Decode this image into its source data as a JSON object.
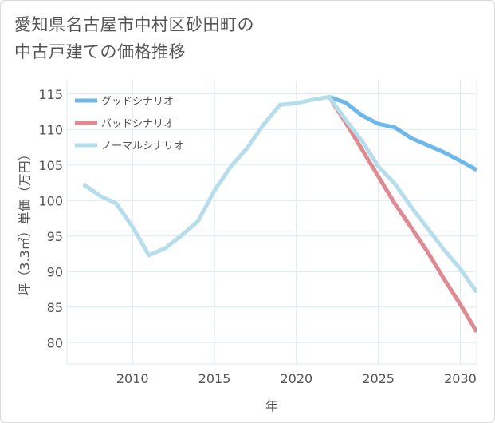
{
  "title_lines": [
    "愛知県名古屋市中村区砂田町の",
    "中古戸建ての価格推移"
  ],
  "chart_data": {
    "type": "line",
    "title": "愛知県名古屋市中村区砂田町の中古戸建ての価格推移",
    "xlabel": "年",
    "ylabel": "坪（3.3㎡）単価（万円）",
    "xlim": [
      2006,
      2031
    ],
    "ylim": [
      77,
      117
    ],
    "x_ticks": [
      2010,
      2015,
      2020,
      2025,
      2030
    ],
    "y_ticks": [
      80,
      85,
      90,
      95,
      100,
      105,
      110,
      115
    ],
    "grid": true,
    "legend_position": "top-left",
    "series": [
      {
        "name": "グッドシナリオ",
        "color": "#6cb8eb",
        "x": [
          2022,
          2023,
          2024,
          2025,
          2026,
          2027,
          2028,
          2029,
          2030,
          2031
        ],
        "y": [
          114.6,
          113.8,
          112.0,
          110.8,
          110.3,
          108.8,
          107.8,
          106.8,
          105.6,
          104.3
        ]
      },
      {
        "name": "バッドシナリオ",
        "color": "#df8a90",
        "x": [
          2022,
          2023,
          2024,
          2025,
          2026,
          2027,
          2028,
          2029,
          2030,
          2031
        ],
        "y": [
          114.6,
          111.0,
          107.2,
          103.4,
          99.6,
          96.2,
          92.8,
          89.0,
          85.4,
          81.5
        ]
      },
      {
        "name": "ノーマルシナリオ",
        "color": "#b5ddec",
        "x": [
          2007,
          2008,
          2009,
          2010,
          2011,
          2012,
          2013,
          2014,
          2015,
          2016,
          2017,
          2018,
          2019,
          2020,
          2021,
          2022,
          2023,
          2024,
          2025,
          2026,
          2027,
          2028,
          2029,
          2030,
          2031
        ],
        "y": [
          102.3,
          100.7,
          99.6,
          96.3,
          92.3,
          93.3,
          95.1,
          97.1,
          101.4,
          104.8,
          107.4,
          110.7,
          113.5,
          113.7,
          114.2,
          114.6,
          111.4,
          108.4,
          104.8,
          102.4,
          99.1,
          96.1,
          93.1,
          90.4,
          87.1
        ]
      }
    ]
  }
}
